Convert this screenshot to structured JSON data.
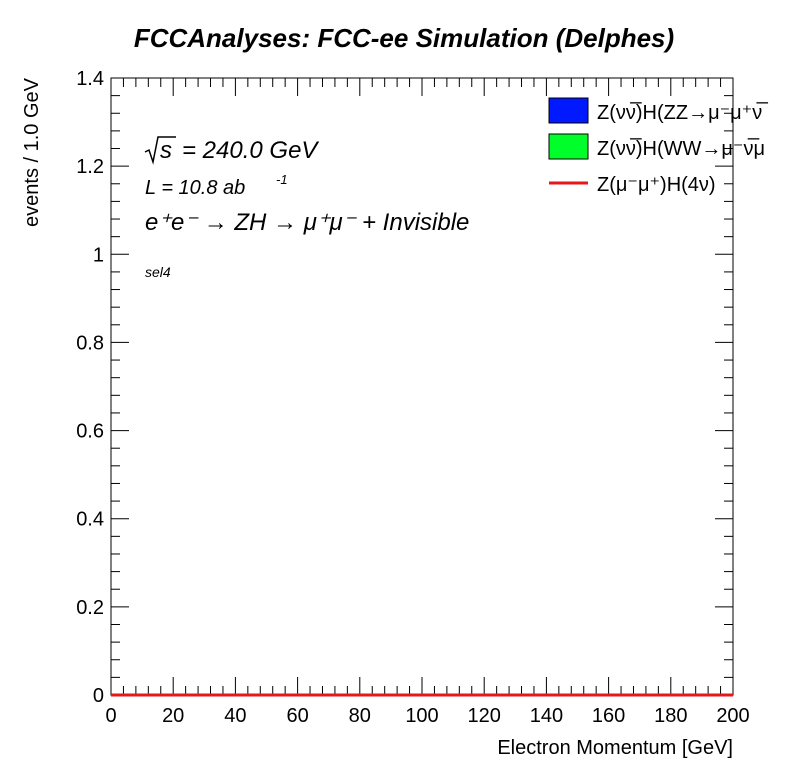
{
  "chart_data": {
    "type": "histogram",
    "title": "FCCAnalyses: FCC-ee Simulation (Delphes)",
    "xlabel": "Electron Momentum [GeV]",
    "ylabel": "events / 1.0 GeV",
    "xlim": [
      0,
      200
    ],
    "ylim": [
      0,
      1.4
    ],
    "x_ticks": [
      "0",
      "20",
      "40",
      "60",
      "80",
      "100",
      "120",
      "140",
      "160",
      "180",
      "200"
    ],
    "y_ticks": [
      "0",
      "0.2",
      "0.4",
      "0.6",
      "0.8",
      "1",
      "1.2",
      "1.4"
    ],
    "annotations": {
      "sqrt_s_symbol": "s",
      "sqrt_s_value": "= 240.0 GeV",
      "lumi_prefix": "L = 10.8 ab",
      "lumi_exp": "-1",
      "process": "e⁺e⁻ → ZH → μ⁺μ⁻ + Invisible",
      "selection": "sel4"
    },
    "legend_position": "top-right",
    "series": [
      {
        "name": "Z(νν̅)H(ZZ→μ⁻μ⁺ν̅",
        "style": "filled",
        "color": "#0019ff",
        "values": [
          0,
          0
        ]
      },
      {
        "name": "Z(νν̅)H(WW→μ⁻ν̅μ",
        "style": "filled",
        "color": "#00ff2a",
        "values": [
          0,
          0
        ]
      },
      {
        "name": "Z(μ⁻μ⁺)H(4ν)",
        "style": "line",
        "color": "#e41a1a",
        "values": [
          0,
          0
        ]
      }
    ],
    "x": [
      0,
      200
    ]
  }
}
